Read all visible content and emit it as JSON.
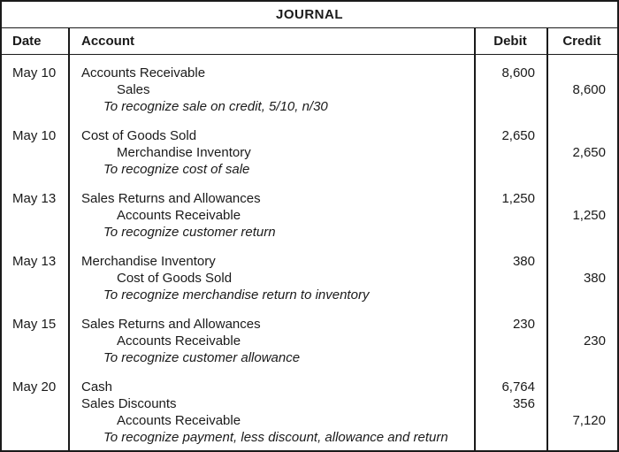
{
  "title": "JOURNAL",
  "columns": {
    "date": "Date",
    "account": "Account",
    "debit": "Debit",
    "credit": "Credit"
  },
  "colors": {
    "border": "#1a1a1a",
    "text": "#1a1a1a",
    "background": "#ffffff"
  },
  "entries": [
    {
      "date": "May 10",
      "lines": [
        {
          "account": "Accounts Receivable",
          "indent": 0,
          "style": "normal",
          "debit": "8,600",
          "credit": ""
        },
        {
          "account": "Sales",
          "indent": 1,
          "style": "normal",
          "debit": "",
          "credit": "8,600"
        },
        {
          "account": "To recognize sale on credit, 5/10, n/30",
          "indent": 2,
          "style": "italic",
          "debit": "",
          "credit": ""
        }
      ]
    },
    {
      "date": "May 10",
      "lines": [
        {
          "account": "Cost of Goods Sold",
          "indent": 0,
          "style": "normal",
          "debit": "2,650",
          "credit": ""
        },
        {
          "account": "Merchandise Inventory",
          "indent": 1,
          "style": "normal",
          "debit": "",
          "credit": "2,650"
        },
        {
          "account": "To recognize cost of sale",
          "indent": 2,
          "style": "italic",
          "debit": "",
          "credit": ""
        }
      ]
    },
    {
      "date": "May 13",
      "lines": [
        {
          "account": "Sales Returns and Allowances",
          "indent": 0,
          "style": "normal",
          "debit": "1,250",
          "credit": ""
        },
        {
          "account": "Accounts Receivable",
          "indent": 1,
          "style": "normal",
          "debit": "",
          "credit": "1,250"
        },
        {
          "account": "To recognize customer return",
          "indent": 2,
          "style": "italic",
          "debit": "",
          "credit": ""
        }
      ]
    },
    {
      "date": "May 13",
      "lines": [
        {
          "account": "Merchandise Inventory",
          "indent": 0,
          "style": "normal",
          "debit": "380",
          "credit": ""
        },
        {
          "account": "Cost of Goods Sold",
          "indent": 1,
          "style": "normal",
          "debit": "",
          "credit": "380"
        },
        {
          "account": "To recognize merchandise return to inventory",
          "indent": 2,
          "style": "italic",
          "debit": "",
          "credit": ""
        }
      ]
    },
    {
      "date": "May 15",
      "lines": [
        {
          "account": "Sales Returns and Allowances",
          "indent": 0,
          "style": "normal",
          "debit": "230",
          "credit": ""
        },
        {
          "account": "Accounts Receivable",
          "indent": 1,
          "style": "normal",
          "debit": "",
          "credit": "230"
        },
        {
          "account": "To recognize customer allowance",
          "indent": 2,
          "style": "italic",
          "debit": "",
          "credit": ""
        }
      ]
    },
    {
      "date": "May 20",
      "lines": [
        {
          "account": "Cash",
          "indent": 0,
          "style": "normal",
          "debit": "6,764",
          "credit": ""
        },
        {
          "account": "Sales Discounts",
          "indent": 0,
          "style": "normal",
          "debit": "356",
          "credit": ""
        },
        {
          "account": "Accounts Receivable",
          "indent": 1,
          "style": "normal",
          "debit": "",
          "credit": "7,120"
        },
        {
          "account": "To recognize payment, less discount, allowance and return",
          "indent": 2,
          "style": "italic",
          "debit": "",
          "credit": ""
        }
      ]
    }
  ]
}
